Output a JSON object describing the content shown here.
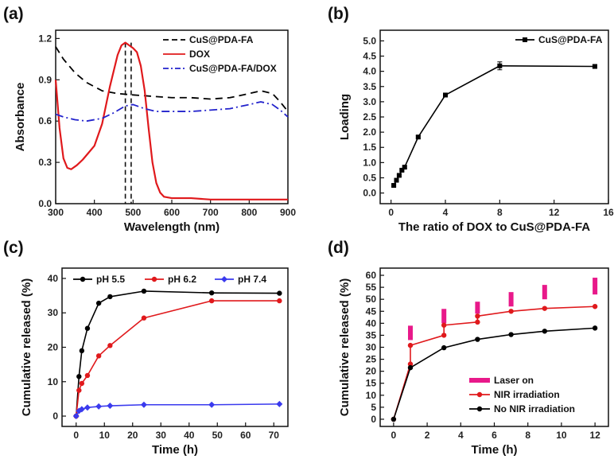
{
  "chart_data": [
    {
      "panel": "(a)",
      "type": "line",
      "xlabel": "Wavelength (nm)",
      "ylabel": "Absorbance",
      "xlim": [
        300,
        900
      ],
      "ylim": [
        0.0,
        1.26
      ],
      "xticks": [
        300,
        400,
        500,
        600,
        700,
        800,
        900
      ],
      "yticks": [
        0.0,
        0.3,
        0.6,
        0.9,
        1.2
      ],
      "legend_position": "top-right",
      "series": [
        {
          "name": "CuS@PDA-FA",
          "color": "#000000",
          "style": "dashed",
          "x": [
            300,
            320,
            350,
            380,
            420,
            460,
            500,
            550,
            600,
            650,
            700,
            750,
            800,
            830,
            860,
            880,
            900
          ],
          "y": [
            1.14,
            1.05,
            0.95,
            0.88,
            0.82,
            0.8,
            0.79,
            0.78,
            0.77,
            0.77,
            0.76,
            0.77,
            0.8,
            0.82,
            0.8,
            0.74,
            0.67
          ]
        },
        {
          "name": "DOX",
          "color": "#e0191c",
          "style": "solid",
          "x": [
            300,
            310,
            320,
            330,
            340,
            355,
            370,
            385,
            400,
            420,
            440,
            460,
            470,
            480,
            490,
            500,
            510,
            520,
            530,
            540,
            550,
            560,
            570,
            580,
            600,
            650,
            700,
            750,
            800,
            850,
            900
          ],
          "y": [
            0.9,
            0.55,
            0.33,
            0.26,
            0.25,
            0.28,
            0.32,
            0.37,
            0.42,
            0.58,
            0.85,
            1.08,
            1.15,
            1.17,
            1.15,
            1.13,
            1.1,
            1.0,
            0.82,
            0.55,
            0.3,
            0.15,
            0.08,
            0.05,
            0.04,
            0.04,
            0.03,
            0.03,
            0.03,
            0.03,
            0.03
          ]
        },
        {
          "name": "CuS@PDA-FA/DOX",
          "color": "#2222cc",
          "style": "dashdot",
          "x": [
            300,
            320,
            350,
            380,
            420,
            450,
            480,
            500,
            530,
            560,
            600,
            650,
            700,
            750,
            800,
            830,
            860,
            880,
            900
          ],
          "y": [
            0.65,
            0.63,
            0.61,
            0.6,
            0.62,
            0.66,
            0.71,
            0.72,
            0.69,
            0.67,
            0.67,
            0.67,
            0.68,
            0.69,
            0.72,
            0.74,
            0.72,
            0.68,
            0.63
          ]
        }
      ],
      "annotations": [
        {
          "type": "vertical-dashed-line",
          "x": 480
        },
        {
          "type": "vertical-dashed-line",
          "x": 495
        }
      ]
    },
    {
      "panel": "(b)",
      "type": "line",
      "xlabel": "The ratio of DOX to CuS@PDA-FA",
      "ylabel": "Loading",
      "xlim": [
        -0.8,
        16
      ],
      "ylim": [
        -0.35,
        5.35
      ],
      "xticks": [
        0,
        4,
        8,
        12,
        16
      ],
      "yticks": [
        0.0,
        0.5,
        1.0,
        1.5,
        2.0,
        2.5,
        3.0,
        3.5,
        4.0,
        4.5,
        5.0
      ],
      "legend_position": "top-right",
      "series": [
        {
          "name": "CuS@PDA-FA",
          "color": "#000000",
          "marker": "square",
          "x": [
            0.2,
            0.4,
            0.6,
            0.8,
            1.0,
            2.0,
            4.0,
            8.0,
            15.0
          ],
          "y": [
            0.25,
            0.42,
            0.58,
            0.75,
            0.85,
            1.84,
            3.22,
            4.18,
            4.16
          ],
          "err": [
            0.03,
            0.03,
            0.03,
            0.03,
            0.03,
            0.04,
            0.05,
            0.13,
            0.05
          ]
        }
      ]
    },
    {
      "panel": "(c)",
      "type": "line",
      "xlabel": "Time (h)",
      "ylabel": "Cumulative released (%)",
      "xlim": [
        -5,
        75
      ],
      "ylim": [
        -3,
        43
      ],
      "xticks": [
        0,
        10,
        20,
        30,
        40,
        50,
        60,
        70
      ],
      "yticks": [
        0,
        10,
        20,
        30,
        40
      ],
      "legend_position": "top",
      "series": [
        {
          "name": "pH 5.5",
          "color": "#000000",
          "marker": "circle",
          "x": [
            0,
            1,
            2,
            4,
            8,
            12,
            24,
            48,
            72
          ],
          "y": [
            0,
            11.5,
            19,
            25.5,
            32.8,
            34.7,
            36.3,
            35.8,
            35.7
          ]
        },
        {
          "name": "pH 6.2",
          "color": "#e0191c",
          "marker": "circle",
          "x": [
            0,
            1,
            2,
            4,
            8,
            12,
            24,
            48,
            72
          ],
          "y": [
            0,
            7.5,
            9.5,
            11.8,
            17.5,
            20.5,
            28.5,
            33.5,
            33.5
          ]
        },
        {
          "name": "pH 7.4",
          "color": "#3a3aee",
          "marker": "diamond",
          "x": [
            0,
            1,
            2,
            4,
            8,
            12,
            24,
            48,
            72
          ],
          "y": [
            0,
            1.5,
            2.0,
            2.5,
            2.8,
            3.0,
            3.3,
            3.3,
            3.5
          ]
        }
      ]
    },
    {
      "panel": "(d)",
      "type": "line",
      "xlabel": "Time (h)",
      "ylabel": "Cumulative released (%)",
      "xlim": [
        -0.8,
        12.8
      ],
      "ylim": [
        -3,
        63
      ],
      "xticks": [
        0,
        2,
        4,
        6,
        8,
        10,
        12
      ],
      "yticks": [
        0,
        5,
        10,
        15,
        20,
        25,
        30,
        35,
        40,
        45,
        50,
        55,
        60
      ],
      "legend_position": "bottom-right",
      "series": [
        {
          "name": "Laser on",
          "color": "#e8198a",
          "type": "bar-markers",
          "x": [
            1,
            3,
            5,
            7,
            9,
            12
          ],
          "y_bottom": [
            33,
            40,
            44,
            47,
            50,
            52
          ],
          "y_top": [
            39,
            46,
            49,
            53,
            56,
            59
          ]
        },
        {
          "name": "NIR irradiation",
          "color": "#e0191c",
          "marker": "circle",
          "x": [
            0,
            1,
            1,
            3,
            3,
            5,
            5,
            7,
            9,
            12
          ],
          "y": [
            0,
            23,
            30.8,
            35,
            39.2,
            40.5,
            43,
            45.0,
            46.2,
            47.0
          ]
        },
        {
          "name": "No NIR irradiation",
          "color": "#000000",
          "marker": "circle",
          "x": [
            0,
            1,
            3,
            5,
            7,
            9,
            12
          ],
          "y": [
            0,
            21.5,
            29.8,
            33.3,
            35.3,
            36.7,
            38.0
          ]
        }
      ]
    }
  ]
}
